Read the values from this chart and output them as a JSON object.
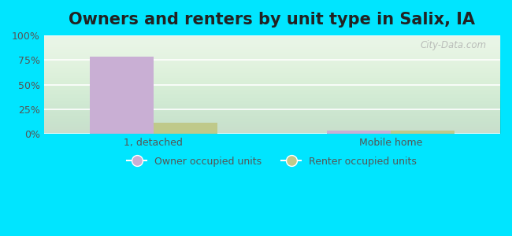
{
  "title": "Owners and renters by unit type in Salix, IA",
  "categories": [
    "1, detached",
    "Mobile home"
  ],
  "owner_values": [
    78,
    3
  ],
  "renter_values": [
    11,
    3
  ],
  "owner_color": "#c9afd4",
  "renter_color": "#bfc98a",
  "ylabel_ticks": [
    "0%",
    "25%",
    "50%",
    "75%",
    "100%"
  ],
  "ytick_vals": [
    0,
    25,
    50,
    75,
    100
  ],
  "ylim": [
    0,
    100
  ],
  "outer_bg": "#00e5ff",
  "plot_bg": "#e8f5e6",
  "watermark": "City-Data.com",
  "legend_owner": "Owner occupied units",
  "legend_renter": "Renter occupied units",
  "title_fontsize": 15,
  "bar_width": 0.35,
  "x_positions": [
    0.5,
    1.8
  ]
}
